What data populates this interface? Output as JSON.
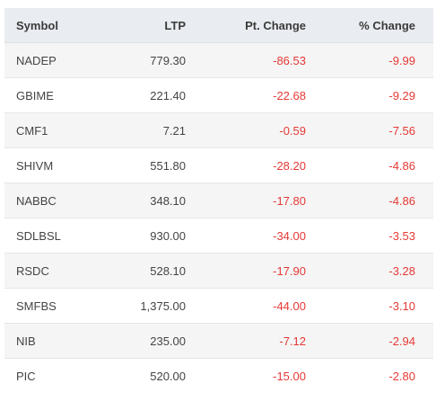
{
  "table": {
    "headers": {
      "symbol": "Symbol",
      "ltp": "LTP",
      "pt_change": "Pt. Change",
      "pct_change": "% Change"
    },
    "rows": [
      {
        "symbol": "NADEP",
        "ltp": "779.30",
        "pt_change": "-86.53",
        "pct_change": "-9.99"
      },
      {
        "symbol": "GBIME",
        "ltp": "221.40",
        "pt_change": "-22.68",
        "pct_change": "-9.29"
      },
      {
        "symbol": "CMF1",
        "ltp": "7.21",
        "pt_change": "-0.59",
        "pct_change": "-7.56"
      },
      {
        "symbol": "SHIVM",
        "ltp": "551.80",
        "pt_change": "-28.20",
        "pct_change": "-4.86"
      },
      {
        "symbol": "NABBC",
        "ltp": "348.10",
        "pt_change": "-17.80",
        "pct_change": "-4.86"
      },
      {
        "symbol": "SDLBSL",
        "ltp": "930.00",
        "pt_change": "-34.00",
        "pct_change": "-3.53"
      },
      {
        "symbol": "RSDC",
        "ltp": "528.10",
        "pt_change": "-17.90",
        "pct_change": "-3.28"
      },
      {
        "symbol": "SMFBS",
        "ltp": "1,375.00",
        "pt_change": "-44.00",
        "pct_change": "-3.10"
      },
      {
        "symbol": "NIB",
        "ltp": "235.00",
        "pt_change": "-7.12",
        "pct_change": "-2.94"
      },
      {
        "symbol": "PIC",
        "ltp": "520.00",
        "pt_change": "-15.00",
        "pct_change": "-2.80"
      }
    ]
  },
  "colors": {
    "negative": "#e53935",
    "header_bg": "#e9ecf0",
    "stripe_bg": "#f5f5f5"
  }
}
